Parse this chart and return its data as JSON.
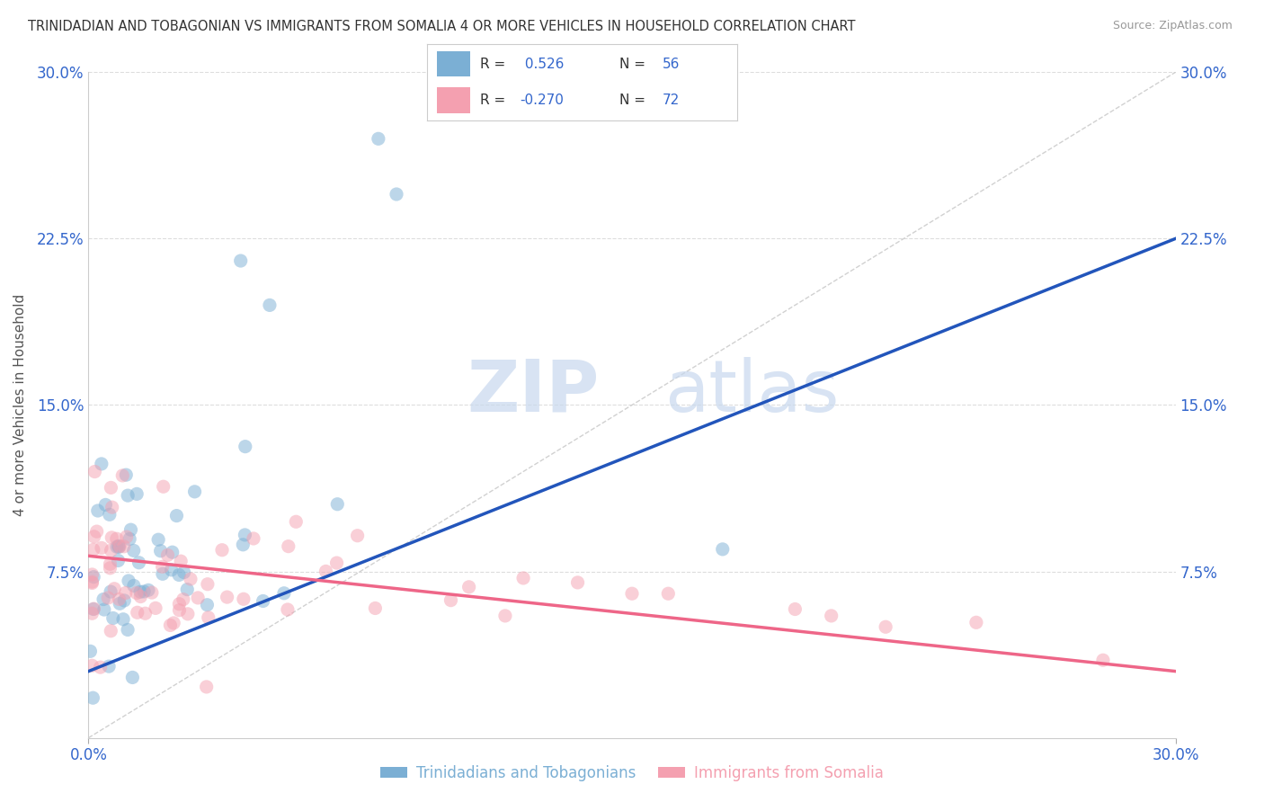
{
  "title": "TRINIDADIAN AND TOBAGONIAN VS IMMIGRANTS FROM SOMALIA 4 OR MORE VEHICLES IN HOUSEHOLD CORRELATION CHART",
  "source": "Source: ZipAtlas.com",
  "ylabel_label": "4 or more Vehicles in Household",
  "xmin": 0.0,
  "xmax": 30.0,
  "ymin": 0.0,
  "ymax": 30.0,
  "yticks": [
    0.0,
    7.5,
    15.0,
    22.5,
    30.0
  ],
  "ytick_labels": [
    "",
    "7.5%",
    "15.0%",
    "22.5%",
    "30.0%"
  ],
  "blue_R": 0.526,
  "blue_N": 56,
  "pink_R": -0.27,
  "pink_N": 72,
  "blue_color": "#7BAFD4",
  "pink_color": "#F4A0B0",
  "blue_line_color": "#2255BB",
  "pink_line_color": "#EE6688",
  "ref_line_color": "#CCCCCC",
  "legend_label_blue": "Trinidadians and Tobagonians",
  "legend_label_pink": "Immigrants from Somalia",
  "watermark_zip": "ZIP",
  "watermark_atlas": "atlas",
  "background_color": "#FFFFFF",
  "plot_bg_color": "#FFFFFF",
  "grid_color": "#DDDDDD",
  "title_color": "#333333",
  "axis_label_color": "#3366CC",
  "blue_trend_x0": 0,
  "blue_trend_y0": 3.0,
  "blue_trend_x1": 30,
  "blue_trend_y1": 22.5,
  "pink_trend_x0": 0,
  "pink_trend_y0": 8.2,
  "pink_trend_x1": 30,
  "pink_trend_y1": 3.0
}
